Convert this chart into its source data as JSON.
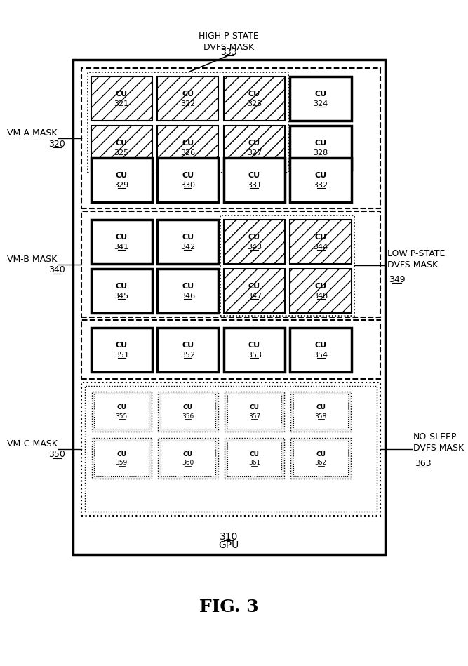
{
  "fig_width": 6.67,
  "fig_height": 9.49,
  "title": "FIG. 3",
  "gpu_label": "GPU",
  "gpu_num": "310",
  "high_p_label": "HIGH P-STATE\nDVFS MASK",
  "high_p_num": "333",
  "low_p_label": "LOW P-STATE\nDVFS MASK",
  "low_p_num": "349",
  "no_sleep_label": "NO-SLEEP\nDVFS MASK",
  "no_sleep_num": "363",
  "vma_label": "VM-A MASK",
  "vma_num": "320",
  "vmb_label": "VM-B MASK",
  "vmb_num": "340",
  "vmc_label": "VM-C MASK",
  "vmc_num": "350",
  "bg_color": "#ffffff"
}
